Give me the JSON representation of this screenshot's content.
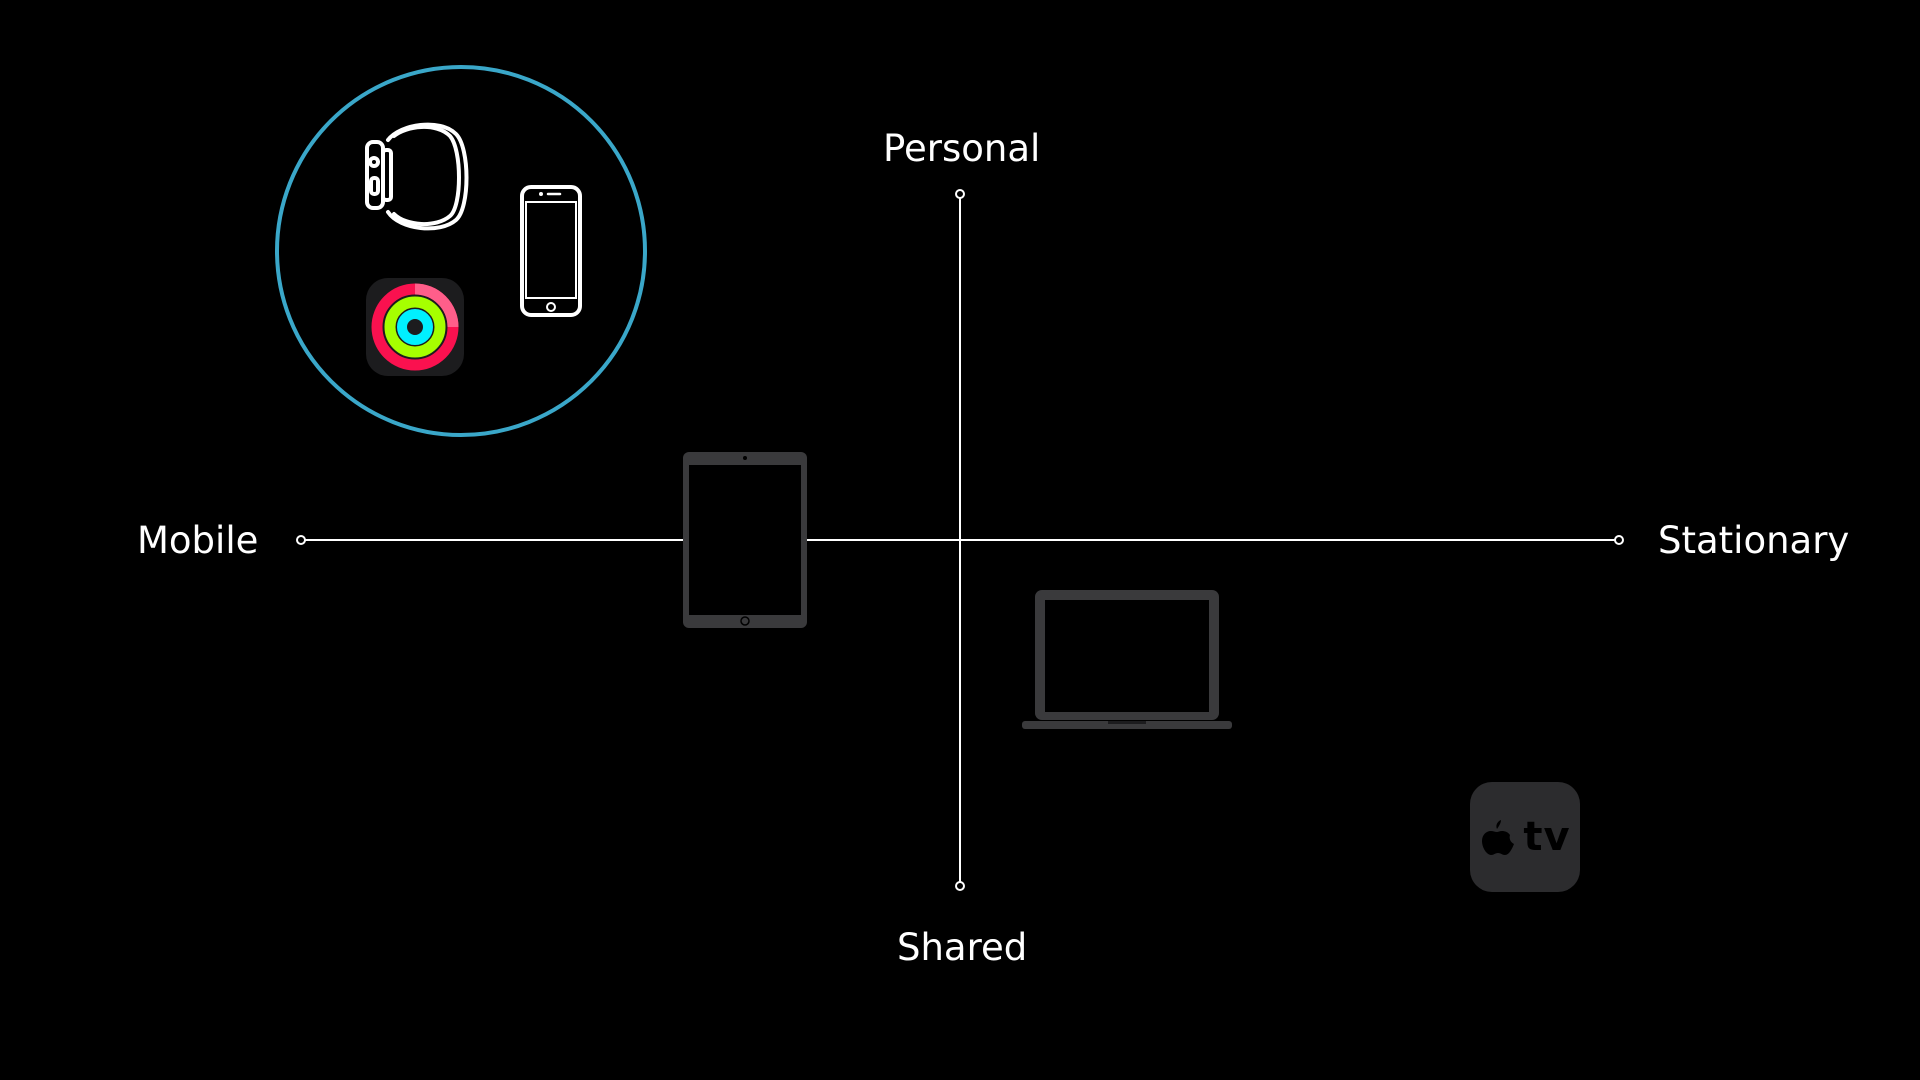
{
  "axes": {
    "top_label": "Personal",
    "bottom_label": "Shared",
    "left_label": "Mobile",
    "right_label": "Stationary"
  },
  "highlight_group": {
    "ring_color": "#3aa7c9",
    "devices": [
      "watch-icon",
      "iphone-icon",
      "activity-rings-icon"
    ]
  },
  "placed_devices": [
    "ipad-icon",
    "macbook-icon",
    "apple-tv-icon"
  ],
  "apple_tv": {
    "wordmark": "tv"
  },
  "colors": {
    "background": "#000000",
    "axis_line": "#ffffff",
    "dim_device": "#3a3a3c",
    "activity_move": "#fa114f",
    "activity_exercise": "#a6ff00",
    "activity_stand": "#00f0ff"
  }
}
